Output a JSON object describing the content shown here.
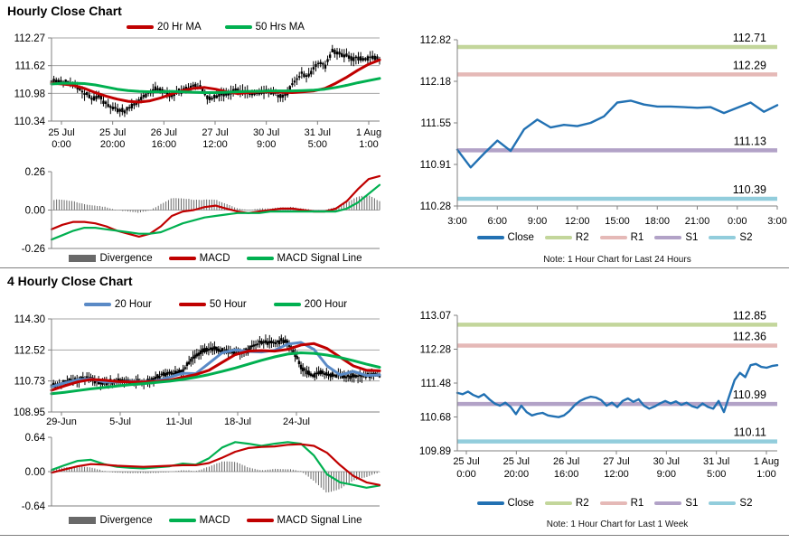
{
  "page": {
    "section1_title": "Hourly Close Chart",
    "section2_title": "4 Hourly Close Chart"
  },
  "colors": {
    "red": "#C00000",
    "green": "#00B050",
    "ma_blue": "#5A8AC6",
    "close_blue": "#2271B3",
    "divergence": "#696969",
    "candle": "#000000",
    "r2": "#C3D69B",
    "r1": "#E5B9B7",
    "s1": "#B2A2C7",
    "s2": "#92CDDC",
    "axis": "#808080",
    "grid": "#A6A6A6"
  },
  "chart_data": [
    {
      "id": "hourly_price",
      "type": "candlestick",
      "title": "Hourly Close Chart",
      "ylim": [
        110.34,
        112.27
      ],
      "y_ticks": [
        "112.27",
        "111.62",
        "110.98",
        "110.34"
      ],
      "x_labels": [
        [
          "25 Jul",
          "0:00"
        ],
        [
          "25 Jul",
          "20:00"
        ],
        [
          "26 Jul",
          "16:00"
        ],
        [
          "27 Jul",
          "12:00"
        ],
        [
          "30 Jul",
          "9:00"
        ],
        [
          "31 Jul",
          "5:00"
        ],
        [
          "1 Aug",
          "1:00"
        ]
      ],
      "close": [
        111.25,
        111.28,
        111.26,
        111.22,
        111.15,
        111.05,
        110.95,
        110.86,
        110.92,
        110.76,
        110.68,
        110.6,
        110.56,
        110.63,
        110.72,
        110.86,
        110.96,
        111.06,
        111.1,
        111.04,
        110.94,
        111.0,
        111.06,
        111.1,
        111.18,
        111.1,
        110.9,
        110.86,
        110.93,
        110.96,
        111.0,
        111.05,
        111.02,
        111.0,
        110.98,
        111.0,
        111.02,
        111.0,
        110.95,
        110.9,
        111.1,
        111.32,
        111.46,
        111.36,
        111.56,
        111.72,
        111.62,
        111.95,
        111.9,
        111.86,
        111.82,
        111.8,
        111.78,
        111.8,
        111.84,
        111.8
      ],
      "series": [
        {
          "name": "20 Hr MA",
          "color": "#C00000",
          "values": [
            111.22,
            111.2,
            111.17,
            111.1,
            111.0,
            110.92,
            110.85,
            110.8,
            110.78,
            110.81,
            110.88,
            110.97,
            111.05,
            111.1,
            111.12,
            111.08,
            111.02,
            110.98,
            111.0,
            111.02,
            111.02,
            111.01,
            111.0,
            111.02,
            111.04,
            111.1,
            111.22,
            111.36,
            111.52,
            111.66,
            111.76
          ]
        },
        {
          "name": "50 Hrs MA",
          "color": "#00B050",
          "values": [
            111.2,
            111.22,
            111.22,
            111.21,
            111.18,
            111.13,
            111.08,
            111.05,
            111.03,
            111.02,
            111.02,
            111.03,
            111.02,
            111.01,
            111.0,
            111.0,
            111.01,
            111.02,
            111.03,
            111.03,
            111.04,
            111.04,
            111.04,
            111.05,
            111.06,
            111.08,
            111.12,
            111.17,
            111.23,
            111.28,
            111.33
          ]
        }
      ],
      "legend": [
        {
          "label": "20 Hr MA",
          "color": "#C00000",
          "swatch": "line"
        },
        {
          "label": "50 Hrs MA",
          "color": "#00B050",
          "swatch": "line"
        }
      ]
    },
    {
      "id": "hourly_macd",
      "type": "macd",
      "ylim": [
        -0.26,
        0.26
      ],
      "y_ticks": [
        "0.26",
        "0.00",
        "-0.26"
      ],
      "series": [
        {
          "name": "MACD",
          "color": "#C00000",
          "values": [
            -0.13,
            -0.1,
            -0.08,
            -0.08,
            -0.09,
            -0.11,
            -0.14,
            -0.16,
            -0.18,
            -0.16,
            -0.11,
            -0.04,
            -0.01,
            0.0,
            0.02,
            0.03,
            0.01,
            -0.01,
            -0.02,
            -0.01,
            0.0,
            0.01,
            0.01,
            0.0,
            -0.01,
            -0.01,
            0.01,
            0.06,
            0.14,
            0.21,
            0.23
          ]
        },
        {
          "name": "MACD Signal Line",
          "color": "#00B050",
          "values": [
            -0.2,
            -0.17,
            -0.14,
            -0.12,
            -0.12,
            -0.13,
            -0.14,
            -0.15,
            -0.16,
            -0.16,
            -0.15,
            -0.12,
            -0.09,
            -0.07,
            -0.05,
            -0.04,
            -0.03,
            -0.02,
            -0.02,
            -0.02,
            -0.01,
            -0.01,
            -0.01,
            -0.01,
            -0.01,
            -0.01,
            -0.01,
            0.01,
            0.05,
            0.11,
            0.17
          ]
        }
      ],
      "legend": [
        {
          "label": "Divergence",
          "color": "#696969",
          "swatch": "bar"
        },
        {
          "label": "MACD",
          "color": "#C00000",
          "swatch": "line"
        },
        {
          "label": "MACD Signal Line",
          "color": "#00B050",
          "swatch": "line"
        }
      ]
    },
    {
      "id": "hourly_pivot",
      "type": "line",
      "ylim": [
        110.28,
        112.82
      ],
      "y_ticks": [
        "112.82",
        "112.18",
        "111.55",
        "110.91",
        "110.28"
      ],
      "x_labels": [
        "3:00",
        "6:00",
        "9:00",
        "12:00",
        "15:00",
        "18:00",
        "21:00",
        "0:00",
        "3:00"
      ],
      "levels": [
        {
          "name": "R2",
          "value": 112.71,
          "label": "112.71",
          "color": "#C3D69B"
        },
        {
          "name": "R1",
          "value": 112.29,
          "label": "112.29",
          "color": "#E5B9B7"
        },
        {
          "name": "S1",
          "value": 111.13,
          "label": "111.13",
          "color": "#B2A2C7"
        },
        {
          "name": "S2",
          "value": 110.39,
          "label": "110.39",
          "color": "#92CDDC"
        }
      ],
      "series": [
        {
          "name": "Close",
          "color": "#2271B3",
          "values": [
            111.14,
            110.87,
            111.08,
            111.28,
            111.12,
            111.45,
            111.6,
            111.48,
            111.52,
            111.5,
            111.55,
            111.65,
            111.86,
            111.89,
            111.83,
            111.8,
            111.8,
            111.79,
            111.78,
            111.79,
            111.7,
            111.78,
            111.86,
            111.72,
            111.82
          ]
        }
      ],
      "legend": [
        {
          "label": "Close",
          "color": "#2271B3",
          "swatch": "line"
        },
        {
          "label": "R2",
          "color": "#C3D69B",
          "swatch": "line"
        },
        {
          "label": "R1",
          "color": "#E5B9B7",
          "swatch": "line"
        },
        {
          "label": "S1",
          "color": "#B2A2C7",
          "swatch": "line"
        },
        {
          "label": "S2",
          "color": "#92CDDC",
          "swatch": "line"
        }
      ],
      "note": "Note: 1 Hour Chart for Last 24 Hours"
    },
    {
      "id": "four_hourly_price",
      "type": "candlestick",
      "title": "4 Hourly Close Chart",
      "ylim": [
        108.95,
        114.3
      ],
      "y_ticks": [
        "114.30",
        "112.52",
        "110.73",
        "108.95"
      ],
      "x_labels": [
        "29-Jun",
        "5-Jul",
        "11-Jul",
        "18-Jul",
        "24-Jul"
      ],
      "close": [
        110.45,
        110.55,
        110.66,
        110.74,
        110.8,
        110.9,
        110.84,
        110.7,
        110.6,
        110.66,
        110.7,
        110.72,
        110.7,
        110.68,
        110.7,
        110.76,
        110.9,
        111.1,
        111.2,
        111.14,
        111.3,
        111.8,
        112.2,
        112.45,
        112.55,
        112.6,
        112.45,
        112.4,
        112.35,
        112.42,
        112.5,
        112.85,
        113.0,
        112.9,
        112.95,
        113.05,
        112.88,
        112.3,
        111.6,
        111.2,
        111.05,
        111.3,
        111.15,
        111.1,
        111.05,
        110.95,
        111.05,
        111.1,
        111.07,
        111.1,
        111.05
      ],
      "series": [
        {
          "name": "20 Hour",
          "color": "#5A8AC6",
          "values": [
            110.4,
            110.62,
            110.8,
            110.85,
            110.68,
            110.68,
            110.71,
            110.69,
            110.73,
            110.95,
            111.18,
            111.16,
            111.75,
            112.35,
            112.52,
            112.43,
            112.4,
            112.5,
            112.85,
            112.95,
            112.55,
            111.6,
            111.08,
            111.28,
            111.05,
            111.08
          ]
        },
        {
          "name": "50 Hour",
          "color": "#C00000",
          "values": [
            110.2,
            110.45,
            110.68,
            110.82,
            110.78,
            110.7,
            110.68,
            110.68,
            110.7,
            110.78,
            110.95,
            111.1,
            111.35,
            111.8,
            112.25,
            112.45,
            112.48,
            112.45,
            112.55,
            112.8,
            112.88,
            112.6,
            112.1,
            111.6,
            111.35,
            111.32
          ]
        },
        {
          "name": "200 Hour",
          "color": "#00B050",
          "values": [
            110.0,
            110.08,
            110.18,
            110.28,
            110.36,
            110.44,
            110.52,
            110.58,
            110.65,
            110.72,
            110.82,
            110.95,
            111.1,
            111.28,
            111.48,
            111.7,
            111.92,
            112.12,
            112.28,
            112.35,
            112.32,
            112.22,
            112.08,
            111.9,
            111.7,
            111.52
          ]
        }
      ],
      "legend": [
        {
          "label": "20 Hour",
          "color": "#5A8AC6",
          "swatch": "line"
        },
        {
          "label": "50 Hour",
          "color": "#C00000",
          "swatch": "line"
        },
        {
          "label": "200 Hour",
          "color": "#00B050",
          "swatch": "line"
        }
      ]
    },
    {
      "id": "four_hourly_macd",
      "type": "macd",
      "ylim": [
        -0.64,
        0.64
      ],
      "y_ticks": [
        "0.64",
        "0.00",
        "-0.64"
      ],
      "series": [
        {
          "name": "MACD",
          "color": "#00B050",
          "values": [
            0.03,
            0.12,
            0.2,
            0.22,
            0.14,
            0.09,
            0.07,
            0.06,
            0.08,
            0.1,
            0.15,
            0.13,
            0.25,
            0.45,
            0.55,
            0.52,
            0.48,
            0.52,
            0.55,
            0.52,
            0.3,
            -0.05,
            -0.2,
            -0.25,
            -0.3,
            -0.26
          ]
        },
        {
          "name": "MACD Signal Line",
          "color": "#C00000",
          "values": [
            -0.02,
            0.04,
            0.1,
            0.14,
            0.13,
            0.11,
            0.1,
            0.09,
            0.1,
            0.11,
            0.12,
            0.12,
            0.16,
            0.26,
            0.37,
            0.44,
            0.46,
            0.47,
            0.5,
            0.51,
            0.48,
            0.35,
            0.12,
            -0.08,
            -0.2,
            -0.25
          ]
        }
      ],
      "legend": [
        {
          "label": "Divergence",
          "color": "#696969",
          "swatch": "bar"
        },
        {
          "label": "MACD",
          "color": "#00B050",
          "swatch": "line"
        },
        {
          "label": "MACD Signal Line",
          "color": "#C00000",
          "swatch": "line"
        }
      ]
    },
    {
      "id": "weekly_pivot",
      "type": "line",
      "ylim": [
        109.89,
        113.07
      ],
      "y_ticks": [
        "113.07",
        "112.28",
        "111.48",
        "110.68",
        "109.89"
      ],
      "x_labels": [
        [
          "25 Jul",
          "0:00"
        ],
        [
          "25 Jul",
          "20:00"
        ],
        [
          "26 Jul",
          "16:00"
        ],
        [
          "27 Jul",
          "12:00"
        ],
        [
          "30 Jul",
          "9:00"
        ],
        [
          "31 Jul",
          "5:00"
        ],
        [
          "1 Aug",
          "1:00"
        ]
      ],
      "levels": [
        {
          "name": "R2",
          "value": 112.85,
          "label": "112.85",
          "color": "#C3D69B"
        },
        {
          "name": "R1",
          "value": 112.36,
          "label": "112.36",
          "color": "#E5B9B7"
        },
        {
          "name": "S1",
          "value": 110.99,
          "label": "110.99",
          "color": "#B2A2C7"
        },
        {
          "name": "S2",
          "value": 110.11,
          "label": "110.11",
          "color": "#92CDDC"
        }
      ],
      "series": [
        {
          "name": "Close",
          "color": "#2271B3",
          "values": [
            111.25,
            111.22,
            111.28,
            111.2,
            111.15,
            111.22,
            111.1,
            111.0,
            110.95,
            111.02,
            110.92,
            110.75,
            110.95,
            110.8,
            110.72,
            110.76,
            110.78,
            110.72,
            110.7,
            110.68,
            110.72,
            110.82,
            110.96,
            111.06,
            111.12,
            111.16,
            111.14,
            111.08,
            110.95,
            111.02,
            110.92,
            111.06,
            111.12,
            111.04,
            111.1,
            110.95,
            110.88,
            110.93,
            111.0,
            111.06,
            111.0,
            111.05,
            110.97,
            111.02,
            110.94,
            110.9,
            111.0,
            110.92,
            110.88,
            111.06,
            110.8,
            111.18,
            111.55,
            111.72,
            111.62,
            111.9,
            111.93,
            111.86,
            111.84,
            111.88,
            111.9
          ]
        }
      ],
      "legend": [
        {
          "label": "Close",
          "color": "#2271B3",
          "swatch": "line"
        },
        {
          "label": "R2",
          "color": "#C3D69B",
          "swatch": "line"
        },
        {
          "label": "R1",
          "color": "#E5B9B7",
          "swatch": "line"
        },
        {
          "label": "S1",
          "color": "#B2A2C7",
          "swatch": "line"
        },
        {
          "label": "S2",
          "color": "#92CDDC",
          "swatch": "line"
        }
      ],
      "note": "Note: 1 Hour Chart for Last 1 Week"
    }
  ]
}
